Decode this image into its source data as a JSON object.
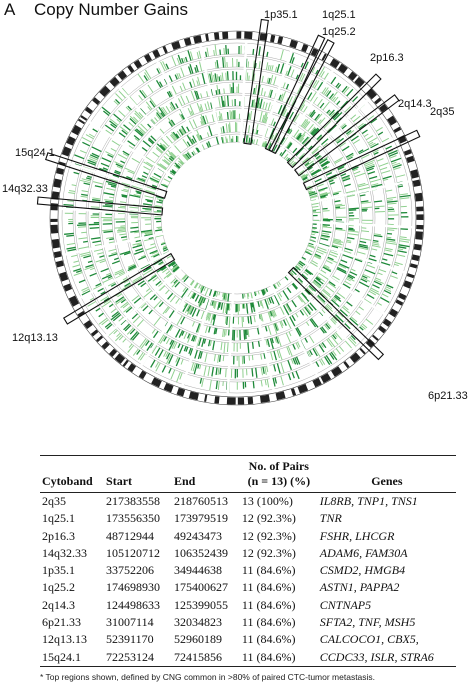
{
  "panel_label": "A",
  "title": "Copy Number Gains",
  "figure": {
    "callouts": [
      "1p35.1",
      "1q25.1",
      "1q25.2",
      "2p16.3",
      "2q14.3",
      "2q35",
      "6p21.33",
      "12q13.13",
      "14q32.33",
      "15q24.1"
    ]
  },
  "table": {
    "group_header": "No. of Pairs",
    "headers": [
      "Cytoband",
      "Start",
      "End",
      "(n = 13) (%)",
      "Genes"
    ],
    "rows": [
      [
        "2q35",
        217383558,
        218760513,
        "13 (100%)",
        "IL8RB, TNP1, TNS1"
      ],
      [
        "1q25.1",
        173556350,
        173979519,
        "12 (92.3%)",
        "TNR"
      ],
      [
        "2p16.3",
        48712944,
        49243473,
        "12 (92.3%)",
        "FSHR, LHCGR"
      ],
      [
        "14q32.33",
        105120712,
        106352439,
        "12 (92.3%)",
        "ADAM6, FAM30A"
      ],
      [
        "1p35.1",
        33752206,
        34944638,
        "11 (84.6%)",
        "CSMD2, HMGB4"
      ],
      [
        "1q25.2",
        174698930,
        175400627,
        "11 (84.6%)",
        "ASTN1, PAPPA2"
      ],
      [
        "2q14.3",
        124498633,
        125399055,
        "11 (84.6%)",
        "CNTNAP5"
      ],
      [
        "6p21.33",
        31007114,
        32034823,
        "11 (84.6%)",
        "SFTA2, TNF, MSH5"
      ],
      [
        "12q13.13",
        52391170,
        52960189,
        "11 (84.6%)",
        "CALCOCO1, CBX5,"
      ],
      [
        "15q24.1",
        72253124,
        72415856,
        "11 (84.6%)",
        "CCDC33, ISLR, STRA6"
      ]
    ]
  },
  "footnote": "* Top regions shown, defined by CNG common in >80% of paired CTC-tumor metastasis."
}
